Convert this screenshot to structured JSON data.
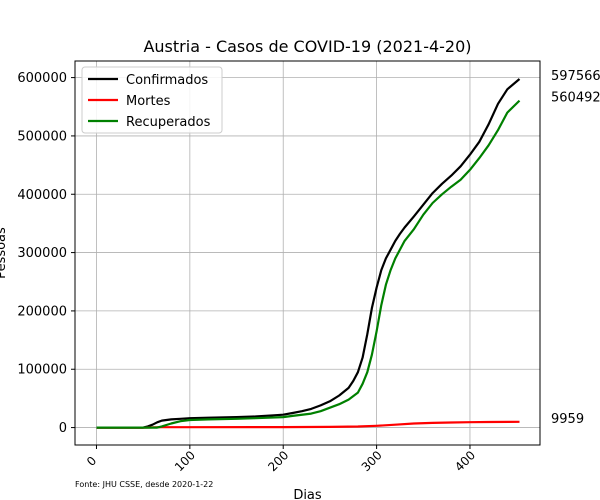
{
  "chart_data": {
    "type": "line",
    "title": "Austria - Casos de COVID-19 (2021-4-20)",
    "xlabel": "Dias",
    "ylabel": "Pessoas",
    "xlim": [
      -23,
      475
    ],
    "ylim": [
      -29879,
      628441
    ],
    "xticks": [
      0,
      100,
      200,
      300,
      400
    ],
    "yticks": [
      0,
      100000,
      200000,
      300000,
      400000,
      500000,
      600000
    ],
    "grid": true,
    "legend_position": "top-left",
    "source_note": "Fonte: JHU CSSE, desde 2020-1-22",
    "series": [
      {
        "name": "Confirmados",
        "color": "#000000",
        "end_label": "597566",
        "points": [
          [
            0,
            0
          ],
          [
            40,
            0
          ],
          [
            50,
            0
          ],
          [
            55,
            2000
          ],
          [
            60,
            5000
          ],
          [
            65,
            9000
          ],
          [
            70,
            12000
          ],
          [
            80,
            14000
          ],
          [
            90,
            15000
          ],
          [
            100,
            16000
          ],
          [
            120,
            17000
          ],
          [
            150,
            18000
          ],
          [
            170,
            19000
          ],
          [
            190,
            21000
          ],
          [
            200,
            22000
          ],
          [
            210,
            25000
          ],
          [
            220,
            28000
          ],
          [
            230,
            32000
          ],
          [
            240,
            38000
          ],
          [
            250,
            45000
          ],
          [
            260,
            55000
          ],
          [
            270,
            68000
          ],
          [
            275,
            80000
          ],
          [
            280,
            95000
          ],
          [
            285,
            120000
          ],
          [
            290,
            160000
          ],
          [
            295,
            205000
          ],
          [
            300,
            240000
          ],
          [
            305,
            270000
          ],
          [
            310,
            290000
          ],
          [
            315,
            305000
          ],
          [
            320,
            320000
          ],
          [
            325,
            332000
          ],
          [
            330,
            343000
          ],
          [
            340,
            362000
          ],
          [
            350,
            382000
          ],
          [
            360,
            402000
          ],
          [
            370,
            418000
          ],
          [
            380,
            432000
          ],
          [
            390,
            448000
          ],
          [
            400,
            468000
          ],
          [
            410,
            490000
          ],
          [
            420,
            520000
          ],
          [
            430,
            555000
          ],
          [
            440,
            580000
          ],
          [
            453,
            597566
          ]
        ]
      },
      {
        "name": "Mortes",
        "color": "#ff0000",
        "end_label": "9959",
        "points": [
          [
            0,
            0
          ],
          [
            50,
            0
          ],
          [
            60,
            300
          ],
          [
            70,
            600
          ],
          [
            100,
            700
          ],
          [
            200,
            800
          ],
          [
            250,
            1200
          ],
          [
            280,
            1800
          ],
          [
            300,
            3000
          ],
          [
            320,
            5000
          ],
          [
            340,
            7000
          ],
          [
            360,
            8000
          ],
          [
            380,
            8700
          ],
          [
            400,
            9200
          ],
          [
            420,
            9500
          ],
          [
            453,
            9959
          ]
        ]
      },
      {
        "name": "Recuperados",
        "color": "#008000",
        "end_label": "560492",
        "points": [
          [
            0,
            0
          ],
          [
            65,
            0
          ],
          [
            70,
            2000
          ],
          [
            80,
            7000
          ],
          [
            90,
            11000
          ],
          [
            100,
            13000
          ],
          [
            120,
            14000
          ],
          [
            150,
            15000
          ],
          [
            170,
            16000
          ],
          [
            200,
            18000
          ],
          [
            210,
            20000
          ],
          [
            230,
            24000
          ],
          [
            240,
            28000
          ],
          [
            250,
            34000
          ],
          [
            260,
            40000
          ],
          [
            270,
            48000
          ],
          [
            280,
            60000
          ],
          [
            285,
            75000
          ],
          [
            290,
            95000
          ],
          [
            295,
            125000
          ],
          [
            300,
            165000
          ],
          [
            305,
            210000
          ],
          [
            310,
            245000
          ],
          [
            315,
            270000
          ],
          [
            320,
            290000
          ],
          [
            330,
            320000
          ],
          [
            340,
            340000
          ],
          [
            350,
            365000
          ],
          [
            360,
            385000
          ],
          [
            370,
            400000
          ],
          [
            380,
            413000
          ],
          [
            390,
            425000
          ],
          [
            400,
            442000
          ],
          [
            410,
            462000
          ],
          [
            420,
            484000
          ],
          [
            430,
            510000
          ],
          [
            440,
            540000
          ],
          [
            453,
            560492
          ]
        ]
      }
    ]
  }
}
